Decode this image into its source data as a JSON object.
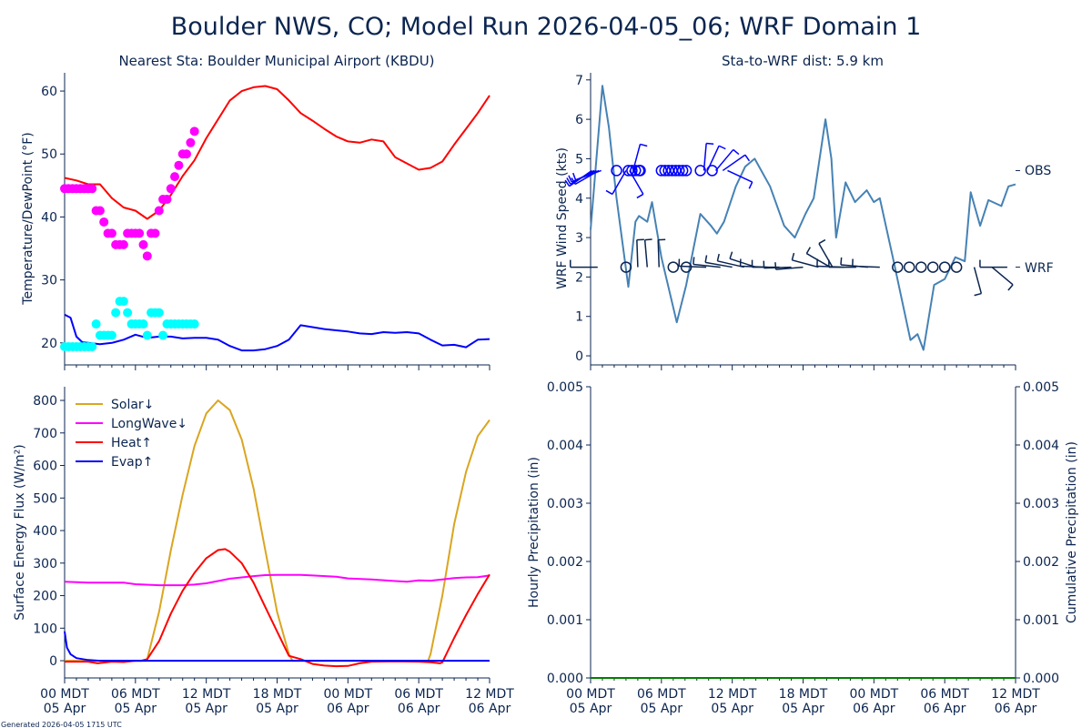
{
  "title": "Boulder NWS, CO; Model Run 2026-04-05_06; WRF Domain 1",
  "footer": "Generated 2026-04-05 1715 UTC",
  "x_ticks": {
    "hours": [
      0,
      6,
      12,
      18,
      24,
      30,
      36
    ],
    "labels": [
      [
        "00 MDT",
        "05 Apr"
      ],
      [
        "06 MDT",
        "05 Apr"
      ],
      [
        "12 MDT",
        "05 Apr"
      ],
      [
        "18 MDT",
        "05 Apr"
      ],
      [
        "00 MDT",
        "06 Apr"
      ],
      [
        "06 MDT",
        "06 Apr"
      ],
      [
        "12 MDT",
        "06 Apr"
      ]
    ]
  },
  "colors": {
    "text": "#0b2550",
    "temp": "#ff0000",
    "dew": "#0000ff",
    "obs_temp": "#ff00ff",
    "obs_dew": "#00ffff",
    "wind": "#4682b4",
    "obs_barb": "#0000ff",
    "wrf_barb": "#0b2550",
    "solar": "#daa520",
    "longwave": "#ff00ff",
    "heat": "#ff0000",
    "evap": "#0000ff",
    "precip": "#008000"
  },
  "chart_data": [
    {
      "id": "temp",
      "type": "line",
      "title": "Nearest Sta: Boulder Municipal Airport (KBDU)",
      "xlabel": "",
      "ylabel": "Temperature/DewPoint (°F)",
      "xlim": [
        0,
        36
      ],
      "ylim": [
        16.5,
        62.9
      ],
      "yticks": [
        20,
        30,
        40,
        50,
        60
      ],
      "series": [
        {
          "name": "WRF Temperature",
          "kind": "line",
          "color_key": "temp",
          "x": [
            0,
            1,
            2,
            3,
            4,
            5,
            6,
            7,
            8,
            9,
            10,
            11,
            12,
            13,
            14,
            15,
            16,
            17,
            18,
            19,
            20,
            21,
            22,
            23,
            24,
            25,
            26,
            27,
            28,
            29,
            30,
            31,
            32,
            33,
            34,
            35,
            36
          ],
          "y": [
            46.2,
            45.8,
            45.2,
            45.2,
            43,
            41.5,
            41,
            39.7,
            41,
            43.5,
            46.5,
            49,
            52.5,
            55.5,
            58.5,
            60,
            60.6,
            60.8,
            60.3,
            58.5,
            56.5,
            55.3,
            54,
            52.8,
            52,
            51.8,
            52.3,
            52,
            49.5,
            48.5,
            47.5,
            47.8,
            48.8,
            51.5,
            54,
            56.5,
            59.3
          ]
        },
        {
          "name": "WRF DewPoint",
          "kind": "line",
          "color_key": "dew",
          "x": [
            0,
            0.5,
            1,
            1.5,
            2,
            3,
            4,
            5,
            6,
            7,
            8,
            9,
            10,
            11,
            12,
            13,
            14,
            15,
            16,
            17,
            18,
            19,
            20,
            21,
            22,
            23,
            24,
            25,
            26,
            27,
            28,
            29,
            30,
            31,
            32,
            33,
            34,
            35,
            36
          ],
          "y": [
            24.5,
            24,
            21,
            20.1,
            20,
            19.8,
            20,
            20.5,
            21.3,
            20.8,
            21,
            21,
            20.7,
            20.8,
            20.8,
            20.5,
            19.5,
            18.8,
            18.8,
            19,
            19.5,
            20.5,
            22.8,
            22.5,
            22.2,
            22,
            21.8,
            21.5,
            21.4,
            21.7,
            21.6,
            21.7,
            21.5,
            20.5,
            19.6,
            19.7,
            19.3,
            20.5,
            20.6
          ]
        },
        {
          "name": "OBS Temperature",
          "kind": "scatter",
          "color_key": "obs_temp",
          "x": [
            0,
            0.33,
            0.67,
            1,
            1.33,
            1.67,
            2,
            2.33,
            2.67,
            3,
            3.33,
            3.67,
            4,
            4.33,
            4.67,
            5,
            5.33,
            5.67,
            6,
            6.33,
            6.67,
            7,
            7.33,
            7.67,
            8,
            8.33,
            8.67,
            9,
            9.33,
            9.67,
            10,
            10.33,
            10.67,
            11
          ],
          "y": [
            44.5,
            44.5,
            44.5,
            44.5,
            44.5,
            44.5,
            44.5,
            44.5,
            41,
            41,
            39.2,
            37.4,
            37.4,
            35.6,
            35.6,
            35.6,
            37.4,
            37.4,
            37.4,
            37.4,
            35.6,
            33.8,
            37.4,
            37.4,
            41,
            42.8,
            42.8,
            44.5,
            46.4,
            48.2,
            50,
            50,
            51.8,
            53.6
          ]
        },
        {
          "name": "OBS DewPoint",
          "kind": "scatter",
          "color_key": "obs_dew",
          "x": [
            0,
            0.33,
            0.67,
            1,
            1.33,
            1.67,
            2,
            2.33,
            2.67,
            3,
            3.33,
            3.67,
            4,
            4.33,
            4.67,
            5,
            5.33,
            5.67,
            6,
            6.33,
            6.67,
            7,
            7.33,
            7.67,
            8,
            8.33,
            8.67,
            9,
            9.33,
            9.67,
            10,
            10.33,
            10.67,
            11
          ],
          "y": [
            19.4,
            19.4,
            19.4,
            19.4,
            19.4,
            19.4,
            19.4,
            19.4,
            23,
            21.2,
            21.2,
            21.2,
            21.2,
            24.8,
            26.6,
            26.6,
            24.8,
            23,
            23,
            23,
            23,
            21.2,
            24.8,
            24.8,
            24.8,
            21.2,
            23,
            23,
            23,
            23,
            23,
            23,
            23,
            23
          ]
        }
      ]
    },
    {
      "id": "wind",
      "type": "line",
      "title": "Sta-to-WRF dist: 5.9 km",
      "xlabel": "",
      "ylabel": "WRF Wind Speed (kts)",
      "xlim": [
        0,
        36
      ],
      "ylim": [
        -0.23,
        7.18
      ],
      "yticks": [
        0,
        1,
        2,
        3,
        4,
        5,
        6,
        7
      ],
      "series": [
        {
          "name": "WRF Wind Speed",
          "kind": "line",
          "color_key": "wind",
          "x": [
            0,
            1,
            1.55,
            2.2,
            3.2,
            3.8,
            4.1,
            4.8,
            5.2,
            6,
            7.3,
            8.1,
            9.3,
            10.2,
            10.7,
            11.3,
            12.3,
            13.1,
            13.9,
            15.2,
            16.4,
            17.3,
            18.2,
            18.9,
            19.9,
            20.4,
            20.8,
            21.6,
            22.4,
            23.4,
            24,
            24.5,
            25.6,
            27.1,
            27.7,
            28.2,
            29.1,
            30,
            30.9,
            31.7,
            32.2,
            33,
            33.7,
            34.8,
            35.4,
            36
          ],
          "y": [
            3.2,
            6.85,
            5.8,
            4,
            1.75,
            3.4,
            3.55,
            3.4,
            3.9,
            2.5,
            0.85,
            1.8,
            3.6,
            3.3,
            3.1,
            3.4,
            4.3,
            4.8,
            5.0,
            4.3,
            3.3,
            3.0,
            3.6,
            4.0,
            6.0,
            5.0,
            3.0,
            4.4,
            3.9,
            4.2,
            3.9,
            4.0,
            2.5,
            0.4,
            0.55,
            0.15,
            1.8,
            1.95,
            2.5,
            2.4,
            4.15,
            3.3,
            3.95,
            3.8,
            4.3,
            4.35
          ]
        }
      ],
      "barb_rows": [
        {
          "label": "OBS",
          "level": 4.7,
          "color_key": "obs_barb",
          "calm": [
            2.2,
            3.2,
            3.5,
            3.8,
            4.1,
            4.2,
            6,
            6.3,
            6.6,
            6.9,
            7.2,
            7.5,
            7.8,
            8.1,
            9.3,
            10.3
          ],
          "barbs_dir_deg": [
            [
              0.1,
              235
            ],
            [
              0.3,
              240
            ],
            [
              0.5,
              245
            ],
            [
              0.7,
              240
            ],
            [
              0.9,
              250
            ],
            [
              3.0,
              210
            ],
            [
              3.3,
              150
            ],
            [
              3.6,
              15
            ],
            [
              9.6,
              5
            ],
            [
              9.9,
              25
            ],
            [
              10.6,
              40
            ],
            [
              11.2,
              55
            ],
            [
              11.6,
              115
            ]
          ]
        },
        {
          "label": "WRF",
          "level": 2.25,
          "color_key": "wrf_barb",
          "calm": [
            3.0,
            7.0,
            8.1,
            26,
            27,
            28,
            29,
            30,
            31
          ],
          "barbs_dir_deg": [
            [
              0.6,
              270
            ],
            [
              4.0,
              358
            ],
            [
              4.8,
              355
            ],
            [
              5.8,
              358
            ],
            [
              9.8,
              272
            ],
            [
              11,
              276
            ],
            [
              12,
              280
            ],
            [
              13,
              283
            ],
            [
              14,
              288
            ],
            [
              15,
              272
            ],
            [
              16,
              270
            ],
            [
              17,
              268
            ],
            [
              18,
              265
            ],
            [
              19.3,
              285
            ],
            [
              20.3,
              300
            ],
            [
              20.5,
              330
            ],
            [
              21.5,
              272
            ],
            [
              22.5,
              270
            ],
            [
              23.5,
              275
            ],
            [
              24.5,
              272
            ],
            [
              32.5,
              165
            ],
            [
              34,
              130
            ],
            [
              35.3,
              270
            ]
          ]
        }
      ]
    },
    {
      "id": "flux",
      "type": "line",
      "title": "",
      "xlabel": "",
      "ylabel": "Surface Energy Flux (W/m²)",
      "xlim": [
        0,
        36
      ],
      "ylim": [
        -53,
        842
      ],
      "yticks": [
        0,
        100,
        200,
        300,
        400,
        500,
        600,
        700,
        800
      ],
      "legend": "top-left",
      "series": [
        {
          "name": "Solar↓",
          "kind": "line",
          "color_key": "solar",
          "x": [
            0,
            6,
            6.9,
            7,
            8,
            9,
            10,
            11,
            12,
            13,
            14,
            15,
            16,
            17,
            18,
            19,
            19.3,
            24,
            30,
            30.8,
            31,
            32,
            33,
            34,
            35,
            36
          ],
          "y": [
            0,
            0,
            0,
            5,
            150,
            340,
            510,
            660,
            760,
            800,
            770,
            680,
            530,
            340,
            150,
            20,
            0,
            0,
            0,
            0,
            20,
            200,
            420,
            580,
            690,
            740
          ]
        },
        {
          "name": "LongWave↓",
          "kind": "line",
          "color_key": "longwave",
          "x": [
            0,
            2,
            5,
            6,
            8,
            10,
            11,
            12,
            13,
            14,
            15,
            16,
            17,
            18,
            20,
            21,
            23,
            24,
            26,
            28,
            29,
            30,
            31,
            32,
            33,
            34,
            35,
            36
          ],
          "y": [
            243,
            240,
            240,
            235,
            232,
            232,
            234,
            238,
            245,
            252,
            256,
            260,
            263,
            264,
            264,
            262,
            258,
            253,
            250,
            245,
            243,
            247,
            246,
            250,
            254,
            256,
            257,
            262
          ]
        },
        {
          "name": "Heat↑",
          "kind": "line",
          "color_key": "heat",
          "x": [
            0,
            2,
            2.8,
            4,
            5,
            6,
            6.5,
            7,
            8,
            9,
            10,
            11,
            12,
            13,
            13.6,
            14,
            15,
            16,
            17,
            18,
            19,
            20,
            21,
            22,
            23,
            24,
            25,
            26,
            28,
            30,
            31,
            31.8,
            32,
            33,
            34,
            35,
            36
          ],
          "y": [
            -3,
            -3,
            -8,
            -3,
            -4,
            0,
            0,
            5,
            60,
            145,
            215,
            270,
            315,
            340,
            343,
            335,
            300,
            240,
            165,
            90,
            15,
            5,
            -10,
            -15,
            -17,
            -16,
            -8,
            -3,
            -2,
            -3,
            -5,
            -8,
            -5,
            70,
            140,
            205,
            265
          ]
        },
        {
          "name": "Evap↑",
          "kind": "line",
          "color_key": "evap",
          "x": [
            0,
            0.2,
            0.5,
            1,
            2,
            3,
            36
          ],
          "y": [
            90,
            40,
            20,
            8,
            2,
            0,
            0
          ]
        }
      ]
    },
    {
      "id": "precip",
      "type": "line",
      "title": "",
      "xlabel": "",
      "ylabel": "Hourly Precipitation (in)",
      "ylabel_right": "Cumulative Precipitation (in)",
      "xlim": [
        0,
        36
      ],
      "ylim": [
        0,
        0.005
      ],
      "yticks": [
        "0.000",
        "0.001",
        "0.002",
        "0.003",
        "0.004",
        "0.005"
      ],
      "series": [
        {
          "name": "Hourly Precipitation",
          "kind": "line",
          "color_key": "precip",
          "x": [
            0,
            36
          ],
          "y": [
            0,
            0
          ]
        },
        {
          "name": "Cumulative Precipitation",
          "kind": "line",
          "color_key": "precip",
          "x": [
            0,
            36
          ],
          "y": [
            0,
            0
          ]
        }
      ]
    }
  ]
}
